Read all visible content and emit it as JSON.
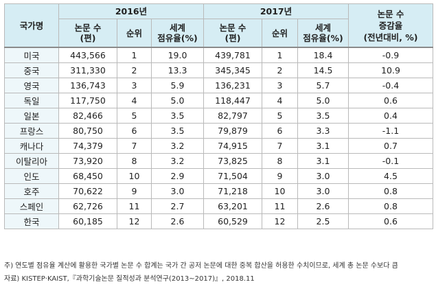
{
  "table": {
    "header": {
      "country": "국가명",
      "year1": "2016년",
      "year2": "2017년",
      "change": [
        "논문 수",
        "증감율",
        "(전년대비, %)"
      ],
      "papers": [
        "논문 수",
        "(편)"
      ],
      "rank": "순위",
      "share": [
        "세계",
        "점유율(%)"
      ]
    },
    "rows": [
      {
        "country": "미국",
        "p2016": "443,566",
        "r2016": "1",
        "s2016": "19.0",
        "p2017": "439,781",
        "r2017": "1",
        "s2017": "18.4",
        "change": "-0.9"
      },
      {
        "country": "중국",
        "p2016": "311,330",
        "r2016": "2",
        "s2016": "13.3",
        "p2017": "345,345",
        "r2017": "2",
        "s2017": "14.5",
        "change": "10.9"
      },
      {
        "country": "영국",
        "p2016": "136,743",
        "r2016": "3",
        "s2016": "5.9",
        "p2017": "136,231",
        "r2017": "3",
        "s2017": "5.7",
        "change": "-0.4"
      },
      {
        "country": "독일",
        "p2016": "117,750",
        "r2016": "4",
        "s2016": "5.0",
        "p2017": "118,447",
        "r2017": "4",
        "s2017": "5.0",
        "change": "0.6"
      },
      {
        "country": "일본",
        "p2016": "82,466",
        "r2016": "5",
        "s2016": "3.5",
        "p2017": "82,797",
        "r2017": "5",
        "s2017": "3.5",
        "change": "0.4"
      },
      {
        "country": "프랑스",
        "p2016": "80,750",
        "r2016": "6",
        "s2016": "3.5",
        "p2017": "79,879",
        "r2017": "6",
        "s2017": "3.3",
        "change": "-1.1"
      },
      {
        "country": "캐나다",
        "p2016": "74,379",
        "r2016": "7",
        "s2016": "3.2",
        "p2017": "74,915",
        "r2017": "7",
        "s2017": "3.1",
        "change": "0.7"
      },
      {
        "country": "이탈리아",
        "p2016": "73,920",
        "r2016": "8",
        "s2016": "3.2",
        "p2017": "73,825",
        "r2017": "8",
        "s2017": "3.1",
        "change": "-0.1"
      },
      {
        "country": "인도",
        "p2016": "68,450",
        "r2016": "10",
        "s2016": "2.9",
        "p2017": "71,504",
        "r2017": "9",
        "s2017": "3.0",
        "change": "4.5"
      },
      {
        "country": "호주",
        "p2016": "70,622",
        "r2016": "9",
        "s2016": "3.0",
        "p2017": "71,218",
        "r2017": "10",
        "s2017": "3.0",
        "change": "0.8"
      },
      {
        "country": "스페인",
        "p2016": "62,726",
        "r2016": "11",
        "s2016": "2.7",
        "p2017": "63,201",
        "r2017": "11",
        "s2017": "2.6",
        "change": "0.8"
      },
      {
        "country": "한국",
        "p2016": "60,185",
        "r2016": "12",
        "s2016": "2.6",
        "p2017": "60,529",
        "r2017": "12",
        "s2017": "2.5",
        "change": "0.6"
      }
    ]
  },
  "notes": {
    "note": "주) 연도별 점유율 계산에 활용한 국가별 논문 수 합계는 국가 간 공저 논문에 대한 중복 합산을 허용한 수치이므로, 세계 총 논문 수보다 큼",
    "source": "자료) KISTEP·KAIST,『과학기술논문 질적성과 분석연구(2013~2017)』, 2018.11"
  }
}
